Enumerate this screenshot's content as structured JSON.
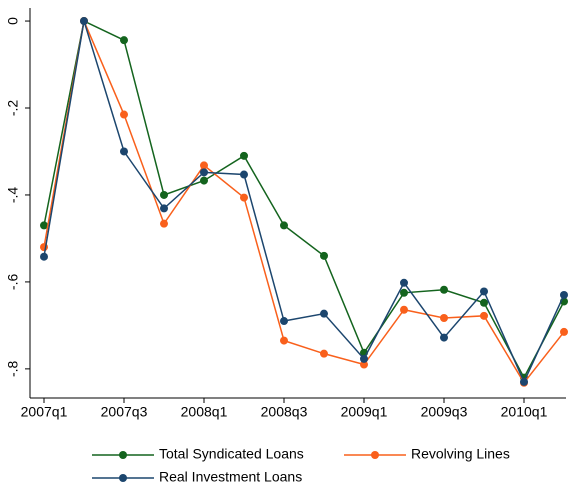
{
  "chart_data": {
    "type": "line",
    "categories": [
      "2007q1",
      null,
      "2007q3",
      null,
      "2008q1",
      null,
      "2008q3",
      null,
      "2009q1",
      null,
      "2009q3",
      null,
      "2010q1",
      null
    ],
    "series": [
      {
        "name": "Total Syndicated Loans",
        "color": "#14641e",
        "values": [
          -0.47,
          0,
          -0.044,
          -0.4,
          -0.367,
          -0.31,
          -0.47,
          -0.54,
          -0.763,
          -0.625,
          -0.618,
          -0.648,
          -0.82,
          -0.645
        ]
      },
      {
        "name": "Revolving Lines",
        "color": "#f9601c",
        "values": [
          -0.52,
          0,
          -0.215,
          -0.466,
          -0.332,
          -0.406,
          -0.735,
          -0.765,
          -0.79,
          -0.664,
          -0.683,
          -0.678,
          -0.832,
          -0.715
        ]
      },
      {
        "name": "Real Investment Loans",
        "color": "#1c466e",
        "values": [
          -0.542,
          0,
          -0.3,
          -0.431,
          -0.348,
          -0.353,
          -0.69,
          -0.673,
          -0.777,
          -0.602,
          -0.728,
          -0.622,
          -0.83,
          -0.63
        ]
      }
    ],
    "ylim": [
      -0.867,
      0.03
    ],
    "yticks": [
      0,
      {
        "value": -0.2,
        "label": "-.2"
      },
      {
        "value": -0.4,
        "label": "-.4"
      },
      {
        "value": -0.6,
        "label": "-.6"
      },
      {
        "value": -0.8,
        "label": "-.8"
      }
    ],
    "legend": "bottom"
  }
}
